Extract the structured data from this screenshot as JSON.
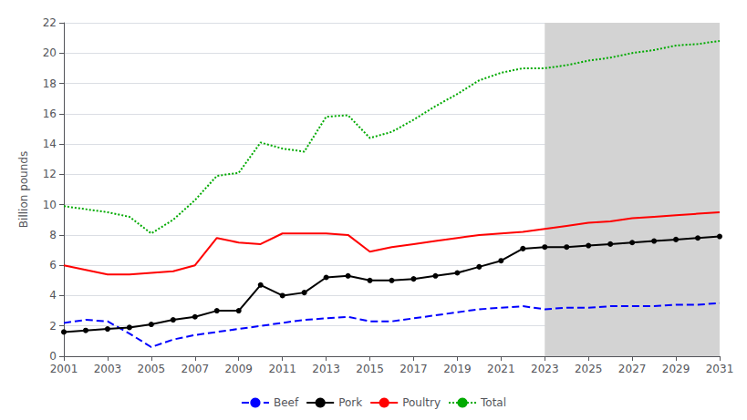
{
  "chart_data": {
    "type": "line",
    "x": [
      2001,
      2002,
      2003,
      2004,
      2005,
      2006,
      2007,
      2008,
      2009,
      2010,
      2011,
      2012,
      2013,
      2014,
      2015,
      2016,
      2017,
      2018,
      2019,
      2020,
      2021,
      2022,
      2023,
      2024,
      2025,
      2026,
      2027,
      2028,
      2029,
      2030,
      2031
    ],
    "series": [
      {
        "name": "Beef",
        "color": "#0000ff",
        "line_style": "dashed",
        "marker": "none",
        "values": [
          2.2,
          2.4,
          2.3,
          1.5,
          0.6,
          1.1,
          1.4,
          1.6,
          1.8,
          2.0,
          2.2,
          2.4,
          2.5,
          2.6,
          2.3,
          2.3,
          2.5,
          2.7,
          2.9,
          3.1,
          3.2,
          3.3,
          3.1,
          3.2,
          3.2,
          3.3,
          3.3,
          3.3,
          3.4,
          3.4,
          3.5
        ]
      },
      {
        "name": "Pork",
        "color": "#000000",
        "line_style": "solid",
        "marker": "circle",
        "values": [
          1.6,
          1.7,
          1.8,
          1.9,
          2.1,
          2.4,
          2.6,
          3.0,
          3.0,
          4.7,
          4.0,
          4.2,
          5.2,
          5.3,
          5.0,
          5.0,
          5.1,
          5.3,
          5.5,
          5.9,
          6.3,
          7.1,
          7.2,
          7.2,
          7.3,
          7.4,
          7.5,
          7.6,
          7.7,
          7.8,
          7.9
        ]
      },
      {
        "name": "Poultry",
        "color": "#ff0000",
        "line_style": "solid",
        "marker": "none",
        "values": [
          6.0,
          5.7,
          5.4,
          5.4,
          5.5,
          5.6,
          6.0,
          7.8,
          7.5,
          7.4,
          8.1,
          8.1,
          8.1,
          8.0,
          6.9,
          7.2,
          7.4,
          7.6,
          7.8,
          8.0,
          8.1,
          8.2,
          8.4,
          8.6,
          8.8,
          8.9,
          9.1,
          9.2,
          9.3,
          9.4,
          9.5
        ]
      },
      {
        "name": "Total",
        "color": "#00aa00",
        "line_style": "dotted",
        "marker": "none",
        "values": [
          9.9,
          9.7,
          9.5,
          9.2,
          8.1,
          9.0,
          10.3,
          11.9,
          12.1,
          14.1,
          13.7,
          13.5,
          15.8,
          15.9,
          14.4,
          14.8,
          15.6,
          16.5,
          17.3,
          18.2,
          18.7,
          19.0,
          19.0,
          19.2,
          19.5,
          19.7,
          20.0,
          20.2,
          20.5,
          20.6,
          20.8
        ]
      }
    ],
    "shaded_region": {
      "from": 2023,
      "to": 2031,
      "color": "#d3d3d3"
    },
    "ylabel": "Billion pounds",
    "xlim": [
      2001,
      2031
    ],
    "xticks": [
      2001,
      2003,
      2005,
      2007,
      2009,
      2011,
      2013,
      2015,
      2017,
      2019,
      2021,
      2023,
      2025,
      2027,
      2029,
      2031
    ],
    "ylim": [
      0,
      22
    ],
    "yticks": [
      0,
      2,
      4,
      6,
      8,
      10,
      12,
      14,
      16,
      18,
      20,
      22
    ],
    "grid": "y",
    "legend": "bottom"
  }
}
